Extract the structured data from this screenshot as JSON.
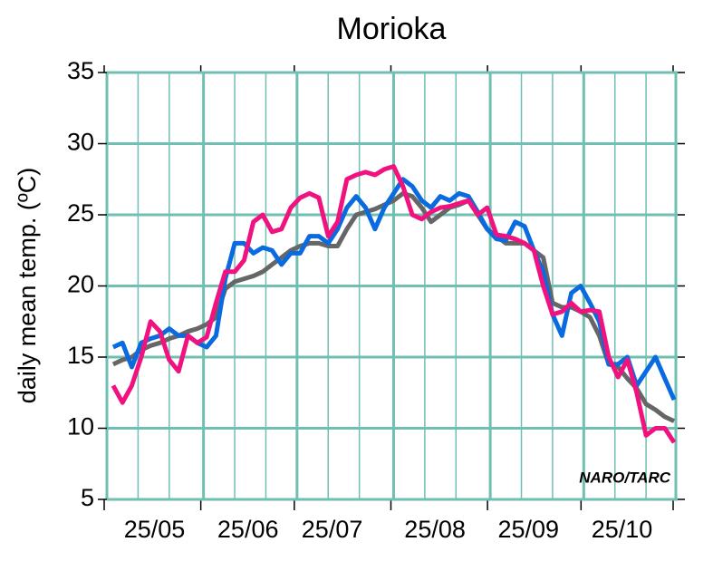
{
  "chart_data": {
    "type": "line",
    "title": "Morioka",
    "y_label": "daily mean temp. (ºC)",
    "annotation": "NARO/TARC",
    "categories": [
      null,
      null,
      null,
      null,
      null,
      "25/05",
      null,
      null,
      null,
      null,
      null,
      null,
      null,
      null,
      null,
      "25/06",
      null,
      null,
      null,
      null,
      null,
      null,
      null,
      null,
      "25/07",
      null,
      null,
      null,
      null,
      null,
      null,
      null,
      null,
      null,
      null,
      "25/08",
      null,
      null,
      null,
      null,
      null,
      null,
      null,
      null,
      null,
      "25/09",
      null,
      null,
      null,
      null,
      null,
      null,
      null,
      null,
      null,
      "25/10",
      null,
      null,
      null,
      null,
      null
    ],
    "series": [
      {
        "color": "#666666",
        "values": [
          14.5,
          14.8,
          15,
          15.5,
          15.8,
          16,
          16.3,
          16.5,
          16.8,
          17,
          17.3,
          17.8,
          19.8,
          20.3,
          20.5,
          20.7,
          21,
          21.5,
          22,
          22.5,
          22.8,
          23,
          23,
          22.8,
          22.8,
          24,
          25,
          25.2,
          25.4,
          25.7,
          26,
          26.5,
          26.3,
          25.5,
          24.5,
          25,
          25.5,
          25.7,
          26,
          25,
          24,
          23.5,
          23,
          23,
          23,
          22.5,
          22,
          18.8,
          18.5,
          18.5,
          18.2,
          17.8,
          16.5,
          14.5,
          14.3,
          13.5,
          12.8,
          11.7,
          11.3,
          10.8,
          10.5
        ]
      },
      {
        "color": "#0a6ae0",
        "values": [
          15.7,
          16,
          14.3,
          16,
          16.3,
          16.5,
          17,
          16.5,
          16.5,
          16,
          15.7,
          16.5,
          20.5,
          23,
          23,
          22.3,
          22.7,
          22.5,
          21.5,
          22.3,
          22.3,
          23.5,
          23.5,
          23,
          24,
          25.5,
          26.3,
          25.5,
          24,
          25.5,
          26.5,
          27.5,
          27,
          26,
          25.5,
          26.3,
          26,
          26.5,
          26.3,
          25.2,
          24,
          23.3,
          23.2,
          24.5,
          24.2,
          22.5,
          21,
          18,
          16.5,
          19.5,
          20,
          18.8,
          17.5,
          14.5,
          14.5,
          15,
          13,
          14,
          15,
          13.5,
          12
        ]
      },
      {
        "color": "#f0137f",
        "values": [
          13,
          11.8,
          13,
          15,
          17.5,
          16.8,
          14.8,
          14,
          16.5,
          16,
          16.4,
          18.8,
          21,
          21,
          21.8,
          24.5,
          25,
          23.8,
          24,
          25.5,
          26.2,
          26.5,
          26.2,
          23.5,
          24.5,
          27.5,
          27.8,
          28,
          27.8,
          28.2,
          28.4,
          27,
          25,
          24.7,
          25.2,
          25.5,
          25.6,
          25.8,
          26,
          25,
          25.5,
          23.6,
          23.5,
          23.3,
          23,
          22.5,
          20,
          18,
          18.2,
          18.8,
          18.2,
          18.3,
          18.2,
          15,
          13.6,
          14.8,
          12.5,
          9.5,
          10,
          10,
          9
        ]
      }
    ],
    "ylim": [
      5,
      35
    ],
    "yticks": [
      5,
      10,
      15,
      20,
      25,
      30,
      35
    ],
    "grid": true
  }
}
